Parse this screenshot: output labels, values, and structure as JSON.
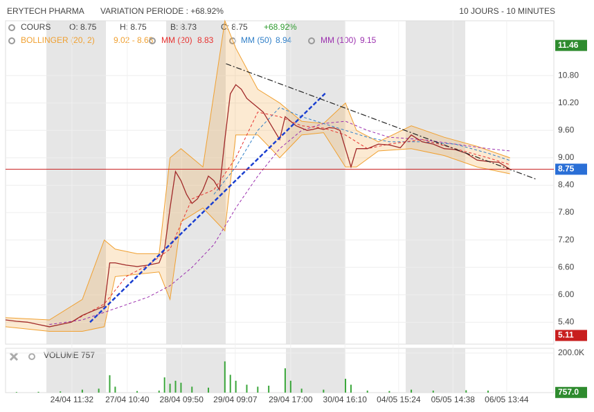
{
  "header": {
    "title": "ERYTECH PHARMA",
    "variation": "VARIATION PERIODE : +68.92%",
    "period": "10 JOURS - 10 MINUTES"
  },
  "legend": {
    "open": "O: 8.75",
    "high": "H: 8.75",
    "low": "B: 8.73",
    "close": "C: 8.75",
    "change": "+68.92%"
  },
  "chart_data": [
    {
      "type": "line",
      "xlim": [
        0,
        100
      ],
      "ylim": [
        4.92,
        12.0
      ],
      "yticks": [
        {
          "value": 5.4,
          "label": "5.40"
        },
        {
          "value": 6.0,
          "label": "6.00"
        },
        {
          "value": 6.6,
          "label": "6.60"
        },
        {
          "value": 7.2,
          "label": "7.20"
        },
        {
          "value": 7.8,
          "label": "7.80"
        },
        {
          "value": 8.4,
          "label": "8.40"
        },
        {
          "value": 9.0,
          "label": "9.00"
        },
        {
          "value": 9.6,
          "label": "9.60"
        },
        {
          "value": 10.2,
          "label": "10.20"
        },
        {
          "value": 10.8,
          "label": "10.80"
        }
      ],
      "xticks": [
        {
          "value": 12.1,
          "label": "24/04 11:32"
        },
        {
          "value": 22.2,
          "label": "27/04 10:40"
        },
        {
          "value": 32.1,
          "label": "28/04 09:50"
        },
        {
          "value": 41.9,
          "label": "29/04 09:07"
        },
        {
          "value": 52,
          "label": "29/04 17:00"
        },
        {
          "value": 61.9,
          "label": "30/04 16:10"
        },
        {
          "value": 71.7,
          "label": "04/05 15:24"
        },
        {
          "value": 81.6,
          "label": "05/05 14:38"
        },
        {
          "value": 91.4,
          "label": "06/05 13:44"
        }
      ],
      "x": [
        0,
        2,
        4,
        6,
        8,
        10,
        12,
        14,
        16,
        18,
        19,
        20,
        22,
        24,
        26,
        28,
        29,
        30,
        31,
        32,
        33,
        34,
        35,
        36,
        37,
        38,
        39,
        40,
        41,
        42,
        43,
        44,
        45,
        46,
        47,
        48,
        49,
        50,
        51,
        52,
        53,
        54,
        55,
        56,
        57,
        58,
        59,
        60,
        61,
        62,
        63,
        64,
        66,
        68,
        70,
        72,
        74,
        76,
        78,
        80,
        82,
        84,
        86,
        88,
        90,
        92
      ],
      "series": [
        {
          "name": "COURS",
          "color": "#a02828",
          "values": [
            5.45,
            5.42,
            5.4,
            5.35,
            5.3,
            5.35,
            5.4,
            5.55,
            5.65,
            5.75,
            6.7,
            6.7,
            6.65,
            6.62,
            6.65,
            6.7,
            7.0,
            7.9,
            8.7,
            8.5,
            8.2,
            8.0,
            8.1,
            8.3,
            8.6,
            8.5,
            8.3,
            9.4,
            10.4,
            10.6,
            10.5,
            10.3,
            10.2,
            10.1,
            10.0,
            9.8,
            9.6,
            9.4,
            9.9,
            9.8,
            9.7,
            9.65,
            9.6,
            9.62,
            9.65,
            9.62,
            9.66,
            9.65,
            9.6,
            9.2,
            8.8,
            9.2,
            9.2,
            9.3,
            9.28,
            9.22,
            9.5,
            9.35,
            9.3,
            9.2,
            9.18,
            9.1,
            8.95,
            8.92,
            8.9,
            8.75
          ]
        },
        {
          "name": "MM (20)",
          "legend_value": "8.83",
          "color": "#e8312f",
          "dashed": true,
          "x": [
            12,
            18,
            22,
            26,
            30,
            34,
            38,
            42,
            46,
            50,
            54,
            58,
            62,
            66,
            70,
            76,
            82,
            88,
            92
          ],
          "values": [
            5.4,
            5.8,
            6.4,
            6.65,
            7.0,
            8.1,
            8.3,
            9.0,
            10.0,
            9.9,
            9.7,
            9.65,
            9.5,
            9.2,
            9.3,
            9.4,
            9.2,
            9.0,
            8.85
          ]
        },
        {
          "name": "MM (50)",
          "legend_value": "8.94",
          "color": "#2f7fc8",
          "dashed": true,
          "x": [
            38,
            42,
            46,
            50,
            54,
            58,
            62,
            66,
            70,
            76,
            82,
            88,
            92
          ],
          "values": [
            8.2,
            8.8,
            9.6,
            10.1,
            9.9,
            9.75,
            9.6,
            9.45,
            9.35,
            9.35,
            9.3,
            9.1,
            8.94
          ]
        },
        {
          "name": "MM (100)",
          "legend_value": "9.15",
          "color": "#9b2fae",
          "dashed": true,
          "x": [
            8,
            14,
            20,
            26,
            30,
            34,
            38,
            42,
            46,
            50,
            54,
            58,
            62,
            66,
            70,
            76,
            82,
            88,
            92
          ],
          "values": [
            5.35,
            5.45,
            5.7,
            5.95,
            6.2,
            6.6,
            7.1,
            7.9,
            8.6,
            9.2,
            9.6,
            9.75,
            9.8,
            9.6,
            9.45,
            9.4,
            9.3,
            9.2,
            9.15
          ]
        }
      ],
      "band": {
        "name": "BOLLINGER (20, 2)",
        "legend_value": "9.02 - 8.63",
        "color": "#f0a030",
        "x": [
          0,
          8,
          14,
          18,
          20,
          24,
          28,
          30,
          32,
          36,
          40,
          42,
          46,
          50,
          54,
          58,
          62,
          64,
          68,
          74,
          80,
          86,
          92
        ],
        "upper": [
          5.5,
          5.45,
          5.9,
          7.2,
          7.0,
          6.9,
          6.9,
          9.0,
          9.2,
          8.8,
          12.0,
          11.4,
          10.5,
          10.2,
          9.8,
          9.75,
          10.2,
          9.6,
          9.35,
          9.7,
          9.45,
          9.25,
          9.0
        ],
        "lower": [
          5.3,
          5.2,
          5.2,
          5.3,
          6.4,
          6.45,
          6.5,
          5.9,
          7.6,
          7.9,
          7.4,
          9.5,
          9.5,
          9.0,
          9.5,
          9.55,
          8.8,
          8.8,
          9.15,
          9.2,
          9.05,
          8.8,
          8.65
        ]
      },
      "trendlines": [
        {
          "color": "#1a3fd0",
          "x": [
            15.4,
            58.3
          ],
          "values": [
            5.4,
            10.41
          ]
        },
        {
          "color": "#222222",
          "x": [
            40.2,
            96.8
          ],
          "values": [
            11.06,
            8.53
          ]
        }
      ],
      "reference_line": {
        "value": 8.75,
        "color": "#c81e1e"
      },
      "badges": [
        {
          "value": 11.46,
          "label": "11.46",
          "color": "#2e8b2e"
        },
        {
          "value": 8.75,
          "label": "8.75",
          "color": "#2a6fd6"
        },
        {
          "value": 5.11,
          "label": "5.11",
          "color": "#c81e1e"
        }
      ]
    },
    {
      "type": "bar",
      "xlim": [
        0,
        100
      ],
      "ylim": [
        0,
        224000
      ],
      "yticks": [
        {
          "value": 200000,
          "label": "200.0K"
        }
      ],
      "x": [
        2,
        6,
        10,
        14,
        17,
        19,
        20,
        24,
        28,
        29,
        30,
        31,
        32,
        34,
        37,
        40,
        41,
        42,
        44,
        46,
        48,
        51,
        52,
        54,
        58,
        62,
        63,
        66,
        70,
        74,
        78,
        84,
        88,
        92
      ],
      "series": [
        {
          "name": "VOLUME",
          "legend_value": "757",
          "color": "#3aa63a",
          "values": [
            3000,
            4000,
            6000,
            15000,
            20000,
            88000,
            30000,
            8000,
            10000,
            77000,
            45000,
            60000,
            50000,
            30000,
            25000,
            158000,
            90000,
            60000,
            40000,
            30000,
            35000,
            123000,
            60000,
            20000,
            15000,
            70000,
            40000,
            10000,
            8000,
            15000,
            10000,
            12000,
            10000,
            757
          ]
        }
      ],
      "badges": [
        {
          "value": 757,
          "label": "757.0",
          "color": "#2e8b2e"
        }
      ]
    }
  ]
}
